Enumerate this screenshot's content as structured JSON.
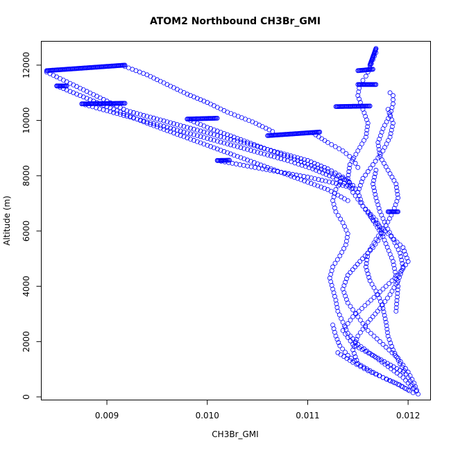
{
  "chart_data": {
    "type": "scatter",
    "title": "ATOM2 Northbound CH3Br_GMI",
    "xlabel": "CH3Br_GMI",
    "ylabel": "Altitude (m)",
    "xlim": [
      0.00835,
      0.01222
    ],
    "ylim": [
      -100,
      12850
    ],
    "xticks": [
      0.009,
      0.01,
      0.011,
      0.012
    ],
    "xtick_labels": [
      "0.009",
      "0.010",
      "0.011",
      "0.012"
    ],
    "yticks": [
      0,
      2000,
      4000,
      6000,
      8000,
      10000,
      12000
    ],
    "ytick_labels": [
      "0",
      "2000",
      "4000",
      "6000",
      "8000",
      "10000",
      "12000"
    ],
    "grid": false,
    "legend": "none",
    "marker": "open-circle",
    "color": "#0000ff",
    "series": [
      {
        "x": [
          0.0121,
          0.01206,
          0.012,
          0.0119,
          0.01175,
          0.0116,
          0.0115,
          0.0114,
          0.01135,
          0.0114,
          0.01152,
          0.01165,
          0.01175,
          0.01168,
          0.01155,
          0.01145,
          0.0114,
          0.01142,
          0.0115,
          0.01158,
          0.0116,
          0.01155,
          0.0115,
          0.01152,
          0.01158,
          0.01162,
          0.01165,
          0.01168,
          0.01168
        ],
        "y": [
          100,
          500,
          900,
          1400,
          1900,
          2400,
          2900,
          3400,
          3900,
          4400,
          4900,
          5400,
          5900,
          6400,
          6900,
          7400,
          7900,
          8400,
          8900,
          9400,
          9900,
          10400,
          10900,
          11300,
          11600,
          11900,
          12200,
          12450,
          12600
        ]
      },
      {
        "x": [
          0.01208,
          0.012,
          0.01192,
          0.01185,
          0.0118,
          0.01178,
          0.01175,
          0.0117,
          0.01162,
          0.01158,
          0.0116,
          0.01168,
          0.01178,
          0.01185,
          0.0119,
          0.01188,
          0.0118,
          0.01172,
          0.0117,
          0.01175,
          0.01182,
          0.01185,
          0.01185,
          0.01182
        ],
        "y": [
          200,
          700,
          1200,
          1700,
          2200,
          2700,
          3200,
          3700,
          4200,
          4700,
          5200,
          5700,
          6200,
          6700,
          7200,
          7700,
          8200,
          8700,
          9200,
          9700,
          10200,
          10600,
          10900,
          11000
        ]
      },
      {
        "x": [
          0.01205,
          0.01195,
          0.0118,
          0.01165,
          0.0115,
          0.0114,
          0.01135,
          0.0113,
          0.01128,
          0.01125,
          0.01122,
          0.01125,
          0.01132,
          0.01138,
          0.0114,
          0.01135,
          0.01128,
          0.01125,
          0.01128,
          0.01135
        ],
        "y": [
          300,
          700,
          1100,
          1500,
          1900,
          2300,
          2700,
          3100,
          3500,
          3900,
          4300,
          4700,
          5100,
          5500,
          5900,
          6300,
          6700,
          7100,
          7500,
          7900
        ]
      },
      {
        "x": [
          0.01195,
          0.0117,
          0.01145,
          0.01135,
          0.01145,
          0.0116,
          0.01175,
          0.0119,
          0.012,
          0.01195,
          0.0118,
          0.01165,
          0.01155,
          0.0115,
          0.01155,
          0.01165,
          0.01175,
          0.01182,
          0.01185,
          0.0118
        ],
        "y": [
          900,
          1400,
          1900,
          2400,
          2900,
          3400,
          3900,
          4400,
          4900,
          5400,
          5900,
          6400,
          6900,
          7400,
          7900,
          8400,
          8900,
          9400,
          9900,
          10400
        ]
      },
      {
        "x": [
          0.0115,
          0.01145,
          0.0115,
          0.0116,
          0.01172,
          0.01182,
          0.0119,
          0.01195,
          0.01192,
          0.01185,
          0.01178,
          0.01172,
          0.01168,
          0.01165,
          0.01168
        ],
        "y": [
          1200,
          1700,
          2200,
          2700,
          3200,
          3700,
          4200,
          4700,
          5200,
          5700,
          6200,
          6700,
          7200,
          7700,
          8200
        ]
      },
      {
        "x": [
          0.0084,
          0.0086,
          0.0088,
          0.009,
          0.0092,
          0.0095,
          0.0098,
          0.0101,
          0.0104,
          0.0107,
          0.011,
          0.0112,
          0.01135,
          0.01145,
          0.0115
        ],
        "y": [
          11750,
          11400,
          11050,
          10700,
          10350,
          10050,
          9750,
          9450,
          9150,
          8850,
          8550,
          8250,
          7950,
          7650,
          7400
        ]
      },
      {
        "x": [
          0.00875,
          0.009,
          0.0093,
          0.0096,
          0.0099,
          0.0102,
          0.0105,
          0.0108,
          0.01105,
          0.01125,
          0.0114
        ],
        "y": [
          10600,
          10350,
          10050,
          9750,
          9450,
          9150,
          8850,
          8550,
          8250,
          7950,
          7650
        ]
      },
      {
        "x": [
          0.00918,
          0.0094,
          0.0096,
          0.0098,
          0.01,
          0.0102,
          0.01045,
          0.01065
        ],
        "y": [
          11950,
          11650,
          11300,
          10950,
          10650,
          10300,
          9950,
          9600
        ]
      },
      {
        "x": [
          0.0085,
          0.0088,
          0.0091,
          0.0094,
          0.0097,
          0.01,
          0.0103,
          0.0106,
          0.0109,
          0.0112,
          0.0114
        ],
        "y": [
          11250,
          10800,
          10350,
          9900,
          9500,
          9100,
          8700,
          8300,
          7900,
          7500,
          7100
        ]
      },
      {
        "x": [
          0.0098,
          0.01,
          0.0103,
          0.0106,
          0.0109,
          0.0112,
          0.0114
        ],
        "y": [
          10050,
          9750,
          9350,
          8950,
          8550,
          8150,
          7800
        ]
      },
      {
        "x": [
          0.0101,
          0.0104,
          0.0107,
          0.011,
          0.01125,
          0.01145
        ],
        "y": [
          8550,
          8350,
          8150,
          7950,
          7750,
          7550
        ]
      },
      {
        "x": [
          0.01105,
          0.0112,
          0.01135,
          0.01145,
          0.0115
        ],
        "y": [
          9550,
          9200,
          8900,
          8600,
          8300
        ]
      },
      {
        "x": [
          0.0116,
          0.01175,
          0.01185,
          0.0119,
          0.01188
        ],
        "y": [
          6700,
          5800,
          4900,
          4000,
          3100
        ]
      },
      {
        "x": [
          0.01125,
          0.01128,
          0.01132,
          0.0114,
          0.0115,
          0.01162,
          0.01175,
          0.01188,
          0.01198,
          0.01205
        ],
        "y": [
          2600,
          2200,
          1850,
          1500,
          1200,
          950,
          700,
          500,
          300,
          150
        ]
      },
      {
        "x": [
          0.0113,
          0.01145,
          0.0116,
          0.01175,
          0.0119,
          0.012
        ],
        "y": [
          1600,
          1250,
          950,
          700,
          450,
          250
        ]
      }
    ],
    "dense_segments": [
      {
        "x": [
          0.0084,
          0.00918
        ],
        "y": [
          11800,
          12000
        ]
      },
      {
        "x": [
          0.00875,
          0.00918
        ],
        "y": [
          10600,
          10620
        ]
      },
      {
        "x": [
          0.0085,
          0.0086
        ],
        "y": [
          11250,
          11250
        ]
      },
      {
        "x": [
          0.0098,
          0.0101
        ],
        "y": [
          10050,
          10080
        ]
      },
      {
        "x": [
          0.0101,
          0.01022
        ],
        "y": [
          8550,
          8560
        ]
      },
      {
        "x": [
          0.0106,
          0.01112
        ],
        "y": [
          9450,
          9580
        ]
      },
      {
        "x": [
          0.01128,
          0.01162
        ],
        "y": [
          10500,
          10520
        ]
      },
      {
        "x": [
          0.0115,
          0.01168
        ],
        "y": [
          11300,
          11300
        ]
      },
      {
        "x": [
          0.0115,
          0.01165
        ],
        "y": [
          11800,
          11850
        ]
      },
      {
        "x": [
          0.01162,
          0.01168
        ],
        "y": [
          12000,
          12600
        ]
      },
      {
        "x": [
          0.0118,
          0.0119
        ],
        "y": [
          6700,
          6700
        ]
      }
    ]
  }
}
